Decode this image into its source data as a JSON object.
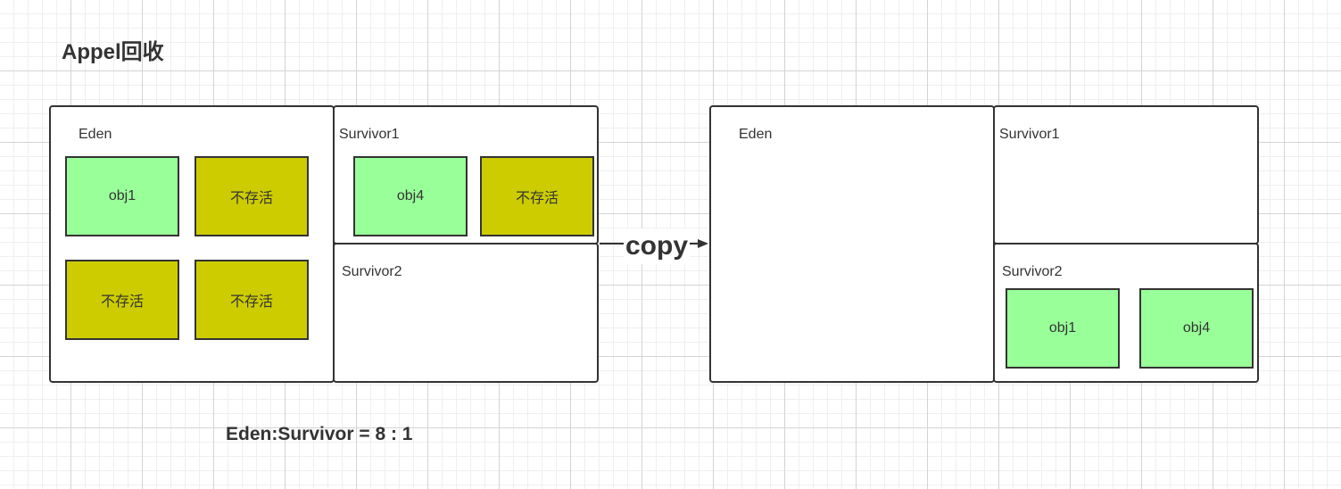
{
  "title": "Appel回收",
  "left": {
    "eden_label": "Eden",
    "survivor1_label": "Survivor1",
    "survivor2_label": "Survivor2",
    "eden_objects": [
      {
        "label": "obj1",
        "state": "live"
      },
      {
        "label": "不存活",
        "state": "dead"
      },
      {
        "label": "不存活",
        "state": "dead"
      },
      {
        "label": "不存活",
        "state": "dead"
      }
    ],
    "survivor1_objects": [
      {
        "label": "obj4",
        "state": "live"
      },
      {
        "label": "不存活",
        "state": "dead"
      }
    ]
  },
  "arrow_label": "copy",
  "right": {
    "eden_label": "Eden",
    "survivor1_label": "Survivor1",
    "survivor2_label": "Survivor2",
    "survivor2_objects": [
      {
        "label": "obj1",
        "state": "live"
      },
      {
        "label": "obj4",
        "state": "live"
      }
    ]
  },
  "ratio_text": "Eden:Survivor = 8 : 1",
  "colors": {
    "live": "#99ff99",
    "dead": "#cccc00",
    "border": "#333333"
  }
}
